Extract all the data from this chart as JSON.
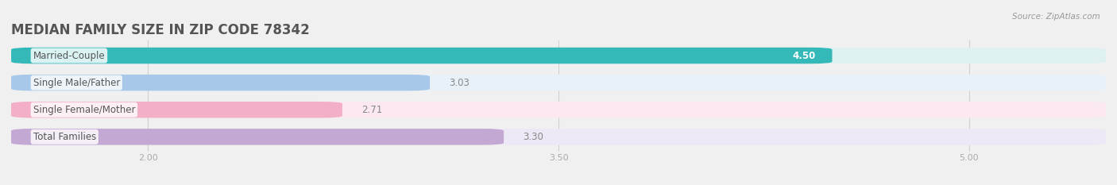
{
  "title": "MEDIAN FAMILY SIZE IN ZIP CODE 78342",
  "source": "Source: ZipAtlas.com",
  "categories": [
    "Married-Couple",
    "Single Male/Father",
    "Single Female/Mother",
    "Total Families"
  ],
  "values": [
    4.5,
    3.03,
    2.71,
    3.3
  ],
  "bar_colors": [
    "#35b8b8",
    "#a8c8ea",
    "#f4afc8",
    "#c4a8d4"
  ],
  "bar_bg_colors": [
    "#dff0f0",
    "#e8f0f8",
    "#fce8f0",
    "#ede8f5"
  ],
  "xlim_data": [
    1.5,
    5.5
  ],
  "data_min": 1.5,
  "data_max": 5.5,
  "xticks": [
    2.0,
    3.5,
    5.0
  ],
  "background_color": "#f0f0f0",
  "bar_height": 0.6,
  "label_fontsize": 8.5,
  "value_fontsize": 8.5,
  "title_fontsize": 12,
  "title_color": "#555555",
  "label_color": "#555555",
  "value_color_inside": "#ffffff",
  "value_color_outside": "#888888",
  "tick_color": "#aaaaaa",
  "grid_color": "#d0d0d0"
}
